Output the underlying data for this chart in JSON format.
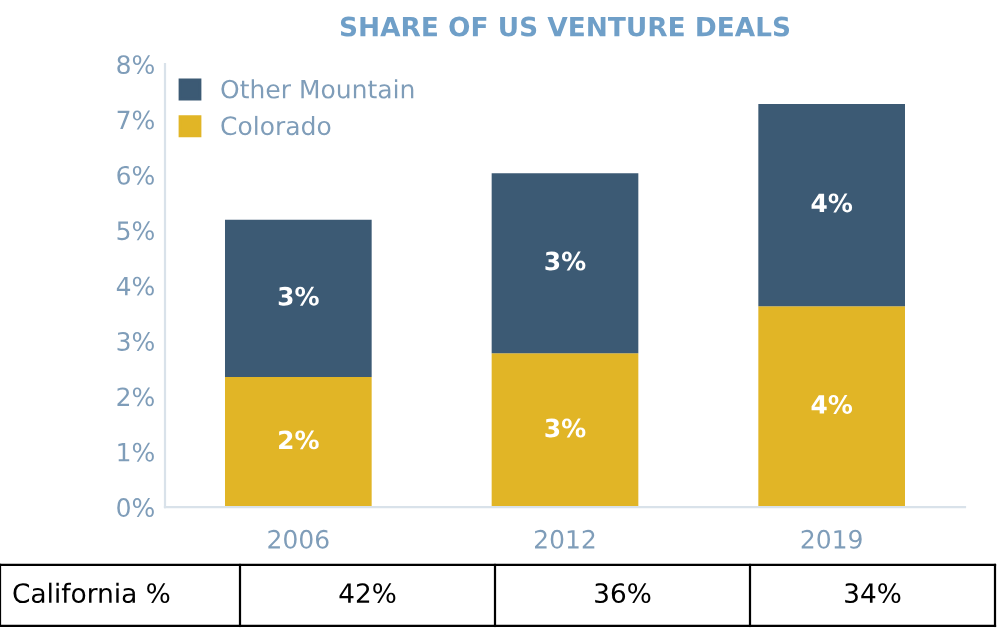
{
  "chart_data": {
    "type": "bar",
    "stacked": true,
    "title": "SHARE OF US VENTURE DEALS",
    "categories": [
      "2006",
      "2012",
      "2019"
    ],
    "series": [
      {
        "name": "Colorado",
        "color": "#e1b526",
        "values": [
          2.35,
          2.78,
          3.63
        ],
        "value_labels": [
          "2%",
          "3%",
          "4%"
        ]
      },
      {
        "name": "Other Mountain",
        "color": "#3c5a74",
        "values": [
          2.84,
          3.25,
          3.65
        ],
        "value_labels": [
          "3%",
          "3%",
          "4%"
        ]
      }
    ],
    "ylim": [
      0,
      8
    ],
    "yticks": [
      {
        "value": 0,
        "label": "0%"
      },
      {
        "value": 1,
        "label": "1%"
      },
      {
        "value": 2,
        "label": "2%"
      },
      {
        "value": 3,
        "label": "3%"
      },
      {
        "value": 4,
        "label": "4%"
      },
      {
        "value": 5,
        "label": "5%"
      },
      {
        "value": 6,
        "label": "6%"
      },
      {
        "value": 7,
        "label": "7%"
      },
      {
        "value": 8,
        "label": "8%"
      }
    ],
    "legend": "top left",
    "annotations": [
      "California %",
      "42%",
      "36%",
      "34%"
    ]
  }
}
